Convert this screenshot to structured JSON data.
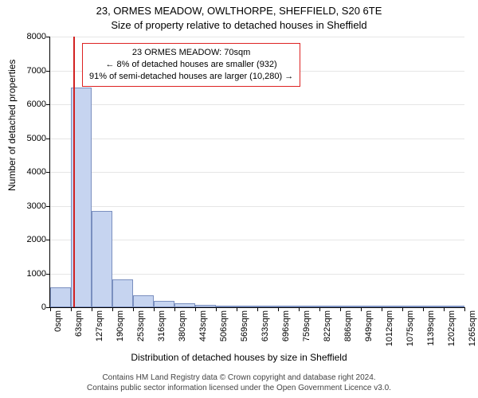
{
  "titles": {
    "line1": "23, ORMES MEADOW, OWLTHORPE, SHEFFIELD, S20 6TE",
    "line2": "Size of property relative to detached houses in Sheffield"
  },
  "axes": {
    "ylabel": "Number of detached properties",
    "xlabel": "Distribution of detached houses by size in Sheffield",
    "ylim": [
      0,
      8000
    ],
    "yticks": [
      0,
      1000,
      2000,
      3000,
      4000,
      5000,
      6000,
      7000,
      8000
    ],
    "grid_color": "#e6e6e6",
    "axis_color": "#000000"
  },
  "chart": {
    "type": "histogram",
    "categories": [
      "0sqm",
      "63sqm",
      "127sqm",
      "190sqm",
      "253sqm",
      "316sqm",
      "380sqm",
      "443sqm",
      "506sqm",
      "569sqm",
      "633sqm",
      "696sqm",
      "759sqm",
      "822sqm",
      "886sqm",
      "949sqm",
      "1012sqm",
      "1075sqm",
      "1139sqm",
      "1202sqm",
      "1265sqm"
    ],
    "values": [
      580,
      6500,
      2850,
      820,
      360,
      190,
      120,
      80,
      50,
      30,
      20,
      15,
      10,
      8,
      6,
      4,
      3,
      2,
      1,
      1
    ],
    "bar_color": "#c6d4f0",
    "bar_border": "#7a8fbf",
    "background": "#ffffff"
  },
  "marker": {
    "position_sqm": 70,
    "color": "#d22222"
  },
  "annotation": {
    "line1": "23 ORMES MEADOW: 70sqm",
    "line2": "← 8% of detached houses are smaller (932)",
    "line3": "91% of semi-detached houses are larger (10,280) →",
    "border_color": "#d22222"
  },
  "footer": {
    "line1": "Contains HM Land Registry data © Crown copyright and database right 2024.",
    "line2": "Contains public sector information licensed under the Open Government Licence v3.0."
  },
  "style": {
    "title_fontsize": 13,
    "label_fontsize": 12,
    "tick_fontsize": 11,
    "annot_fontsize": 11,
    "footer_fontsize": 10
  }
}
